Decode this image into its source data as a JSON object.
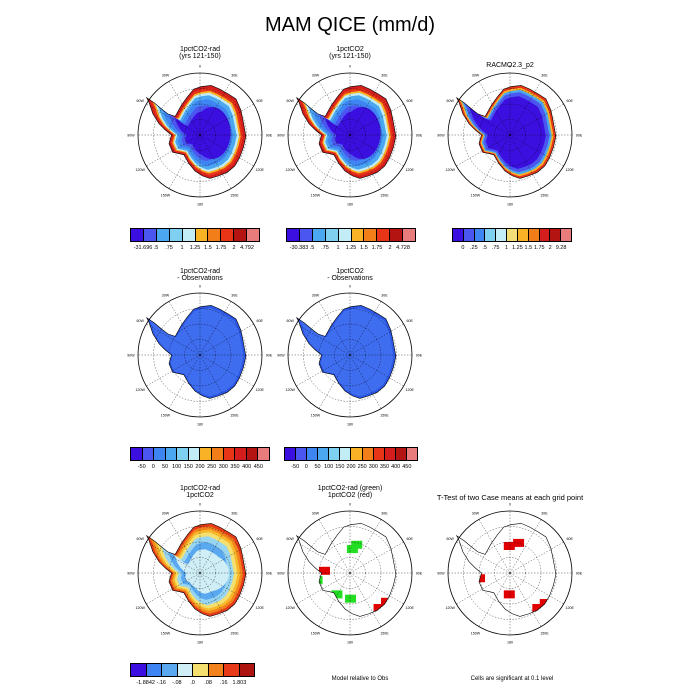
{
  "title": "MAM QICE (mm/d)",
  "meridian_labels": [
    "0",
    "30E",
    "60E",
    "90E",
    "120E",
    "150E",
    "180",
    "150W",
    "120W",
    "90W",
    "60W",
    "30W"
  ],
  "colors": {
    "ice": [
      "#3b0fe0",
      "#4b56f0",
      "#3f84f3",
      "#4aa7f0",
      "#7fcff0",
      "#c2ecf6",
      "#f2dd78",
      "#f9b226",
      "#f17e18",
      "#e83518",
      "#d41e1e",
      "#b31411",
      "#e87c7c"
    ],
    "diff": [
      "#3b0fe0",
      "#3d4ff0",
      "#3f84f3",
      "#5aa9f0",
      "#97d5f3",
      "#cfeef6",
      "#f3e070",
      "#f8b629",
      "#f1821c",
      "#e73a19",
      "#d41e1e",
      "#ad1410"
    ],
    "ttest_map": [
      "#ffffff"
    ],
    "sig_green": "#22dd22",
    "sig_red": "#e00000"
  },
  "panels": [
    {
      "id": "p1",
      "title_lines": [
        "1pctCO2-rad",
        "(yrs 121-150)"
      ],
      "legend": [
        "-31.696",
        ".5",
        ".75",
        "1",
        "1.25",
        "1.5",
        "1.75",
        "2",
        "4.792"
      ]
    },
    {
      "id": "p2",
      "title_lines": [
        "1pctCO2",
        "(yrs 121-150)"
      ],
      "legend": [
        "-30.383",
        ".5",
        ".75",
        "1",
        "1.25",
        "1.5",
        "1.75",
        "2",
        "4.728"
      ]
    },
    {
      "id": "p3",
      "title_lines": [
        "RACMO2.3_p2"
      ],
      "legend": [
        "0",
        ".25",
        ".5",
        ".75",
        "1",
        "1.25",
        "1.5",
        "1.75",
        "2",
        "9.28"
      ]
    },
    {
      "id": "p4",
      "title_lines": [
        "1pctCO2-rad",
        "- Observations"
      ],
      "legend": [
        "-50",
        "0",
        "50",
        "100",
        "150",
        "200",
        "250",
        "300",
        "350",
        "400",
        "450"
      ]
    },
    {
      "id": "p5",
      "title_lines": [
        "1pctCO2",
        "- Observations"
      ],
      "legend": [
        "-50",
        "0",
        "50",
        "100",
        "150",
        "200",
        "250",
        "300",
        "350",
        "400",
        "450"
      ]
    },
    {
      "id": "p6",
      "title_lines": [
        "1pctCO2-rad",
        "1pctCO2"
      ],
      "legend": [
        "-1.8842",
        "-.16",
        "-.08",
        ".0",
        ".08",
        ".16",
        "1.803"
      ]
    },
    {
      "id": "p7",
      "title_lines": [
        "1pctCO2-rad (green)",
        "1pctCO2 (red)"
      ],
      "note": "Model relative to Obs"
    },
    {
      "id": "p8",
      "title_lines": [
        "T-Test of two Case means at each grid point"
      ],
      "note": "Cells are significant at 0.1 level"
    }
  ]
}
